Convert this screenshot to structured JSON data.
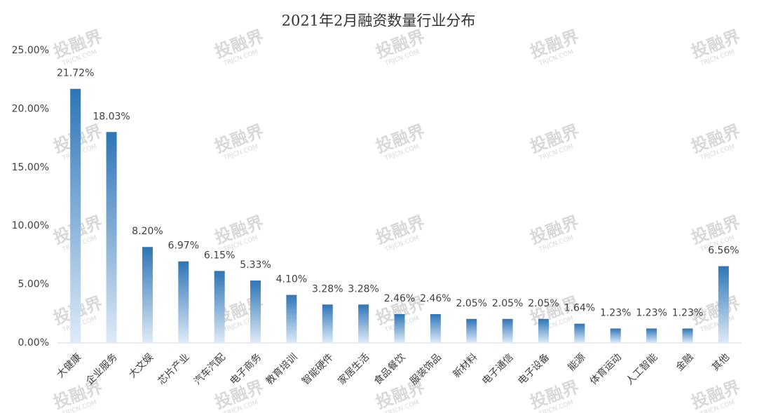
{
  "chart_data": {
    "type": "bar",
    "title": "2021年2月融资数量行业分布",
    "categories": [
      "大健康",
      "企业服务",
      "大文娱",
      "芯片产业",
      "汽车汽配",
      "电子商务",
      "教育培训",
      "智能硬件",
      "家居生活",
      "食品餐饮",
      "服装饰品",
      "新材料",
      "电子通信",
      "电子设备",
      "能源",
      "体育运动",
      "人工智能",
      "金融",
      "其他"
    ],
    "values": [
      21.72,
      18.03,
      8.2,
      6.97,
      6.15,
      5.33,
      4.1,
      3.28,
      3.28,
      2.46,
      2.46,
      2.05,
      2.05,
      2.05,
      1.64,
      1.23,
      1.23,
      1.23,
      6.56
    ],
    "value_labels": [
      "21.72%",
      "18.03%",
      "8.20%",
      "6.97%",
      "6.15%",
      "5.33%",
      "4.10%",
      "3.28%",
      "3.28%",
      "2.46%",
      "2.46%",
      "2.05%",
      "2.05%",
      "2.05%",
      "1.64%",
      "1.23%",
      "1.23%",
      "1.23%",
      "6.56%"
    ],
    "color": "#2e75b6",
    "ylim": [
      0,
      25
    ],
    "yticks": [
      {
        "value": 0,
        "label": "0.00%"
      },
      {
        "value": 5,
        "label": "5.00%"
      },
      {
        "value": 10,
        "label": "10.00%"
      },
      {
        "value": 15,
        "label": "15.00%"
      },
      {
        "value": 20,
        "label": "20.00%"
      },
      {
        "value": 25,
        "label": "25.00%"
      }
    ],
    "grid": false,
    "watermark": {
      "text": "投融界",
      "subtext": "TRJCN.COM"
    }
  }
}
